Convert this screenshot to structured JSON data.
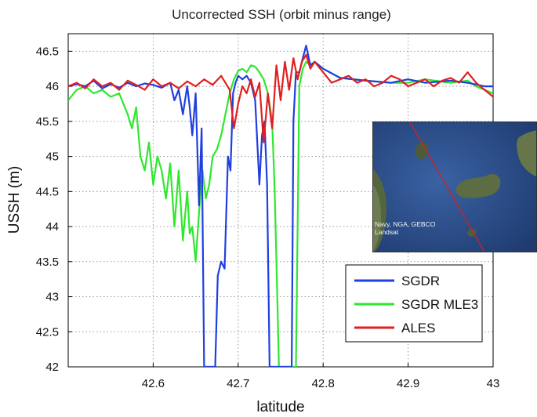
{
  "chart_data": {
    "type": "line",
    "title": "Uncorrected SSH (orbit minus range)",
    "xlabel": "latitude",
    "ylabel": "USSH (m)",
    "xlim": [
      42.5,
      43.0
    ],
    "ylim": [
      42,
      46.75
    ],
    "xticks": [
      42.6,
      42.7,
      42.8,
      42.9,
      43.0
    ],
    "xtick_labels": [
      "42.6",
      "42.7",
      "42.8",
      "42.9",
      "43"
    ],
    "yticks": [
      42,
      42.5,
      43,
      43.5,
      44,
      44.5,
      45,
      45.5,
      46,
      46.5
    ],
    "ytick_labels": [
      "42",
      "42.5",
      "43",
      "43.5",
      "44",
      "44.5",
      "45",
      "45.5",
      "46",
      "46.5"
    ],
    "grid": true,
    "legend_position": "lower-right",
    "series": [
      {
        "name": "SGDR",
        "color": "#1f3fe0",
        "x": [
          42.5,
          42.51,
          42.52,
          42.53,
          42.54,
          42.55,
          42.56,
          42.57,
          42.58,
          42.59,
          42.6,
          42.61,
          42.62,
          42.625,
          42.63,
          42.635,
          42.64,
          42.643,
          42.646,
          42.65,
          42.654,
          42.657,
          42.66,
          42.663,
          42.666,
          42.67,
          42.673,
          42.676,
          42.68,
          42.684,
          42.688,
          42.691,
          42.694,
          42.697,
          42.7,
          42.705,
          42.71,
          42.715,
          42.72,
          42.725,
          42.728,
          42.731,
          42.734,
          42.737,
          42.74,
          42.745,
          42.75,
          42.755,
          42.76,
          42.763,
          42.765,
          42.768,
          42.772,
          42.776,
          42.78,
          42.785,
          42.79,
          42.8,
          42.82,
          42.85,
          42.88,
          42.9,
          42.92,
          42.95,
          42.97,
          42.99,
          43.0
        ],
        "values": [
          46.0,
          46.03,
          46.0,
          46.08,
          45.97,
          46.03,
          45.98,
          46.05,
          46.0,
          46.04,
          46.02,
          45.98,
          46.05,
          45.8,
          45.95,
          45.6,
          46.0,
          45.7,
          45.3,
          45.9,
          44.3,
          45.4,
          42.0,
          42.0,
          42.0,
          42.0,
          42.0,
          43.3,
          43.5,
          43.4,
          45.0,
          44.8,
          45.9,
          46.05,
          46.15,
          46.1,
          46.15,
          46.05,
          45.8,
          44.6,
          45.3,
          45.5,
          44.6,
          42.0,
          42.0,
          42.0,
          42.0,
          42.0,
          42.0,
          42.0,
          45.5,
          46.2,
          46.2,
          46.4,
          46.58,
          46.3,
          46.35,
          46.25,
          46.12,
          46.08,
          46.05,
          46.1,
          46.05,
          46.08,
          46.05,
          46.0,
          46.0
        ]
      },
      {
        "name": "SGDR MLE3",
        "color": "#2ee82e",
        "x": [
          42.5,
          42.51,
          42.52,
          42.53,
          42.54,
          42.55,
          42.56,
          42.57,
          42.575,
          42.58,
          42.585,
          42.59,
          42.595,
          42.6,
          42.605,
          42.61,
          42.615,
          42.62,
          42.625,
          42.63,
          42.635,
          42.64,
          42.643,
          42.646,
          42.65,
          42.654,
          42.658,
          42.662,
          42.666,
          42.67,
          42.675,
          42.68,
          42.685,
          42.69,
          42.695,
          42.7,
          42.705,
          42.71,
          42.715,
          42.72,
          42.725,
          42.73,
          42.735,
          42.74,
          42.743,
          42.746,
          42.748,
          42.75,
          42.755,
          42.76,
          42.765,
          42.768,
          42.772,
          42.776,
          42.78,
          42.785,
          42.79,
          42.8,
          42.82,
          42.85,
          42.88,
          42.9,
          42.92,
          42.95,
          42.97,
          42.98,
          42.99,
          43.0
        ],
        "values": [
          45.8,
          45.95,
          46.0,
          45.9,
          45.95,
          45.85,
          45.9,
          45.6,
          45.4,
          45.7,
          45.0,
          44.8,
          45.2,
          44.6,
          45.0,
          44.8,
          44.4,
          44.9,
          44.0,
          44.8,
          43.8,
          44.5,
          43.9,
          44.0,
          43.5,
          44.2,
          44.8,
          44.4,
          44.6,
          45.0,
          45.1,
          45.3,
          45.6,
          45.9,
          46.1,
          46.22,
          46.25,
          46.2,
          46.3,
          46.28,
          46.2,
          46.1,
          45.9,
          45.5,
          44.5,
          43.0,
          42.0,
          42.0,
          42.0,
          42.0,
          42.0,
          42.0,
          46.0,
          46.25,
          46.35,
          46.3,
          46.35,
          46.25,
          46.12,
          46.08,
          46.05,
          46.05,
          46.1,
          46.05,
          46.08,
          46.0,
          45.95,
          45.9
        ]
      },
      {
        "name": "ALES",
        "color": "#e02020",
        "x": [
          42.5,
          42.51,
          42.52,
          42.53,
          42.54,
          42.55,
          42.56,
          42.57,
          42.58,
          42.59,
          42.6,
          42.61,
          42.62,
          42.63,
          42.64,
          42.65,
          42.66,
          42.67,
          42.68,
          42.69,
          42.695,
          42.7,
          42.705,
          42.71,
          42.715,
          42.72,
          42.725,
          42.73,
          42.735,
          42.74,
          42.745,
          42.75,
          42.755,
          42.76,
          42.765,
          42.77,
          42.775,
          42.78,
          42.785,
          42.79,
          42.8,
          42.81,
          42.82,
          42.83,
          42.84,
          42.85,
          42.86,
          42.87,
          42.88,
          42.89,
          42.9,
          42.91,
          42.92,
          42.93,
          42.94,
          42.95,
          42.96,
          42.97,
          42.98,
          42.99,
          43.0
        ],
        "values": [
          46.0,
          46.05,
          45.97,
          46.1,
          46.0,
          46.05,
          45.95,
          46.08,
          46.02,
          45.95,
          46.1,
          46.0,
          46.05,
          45.97,
          46.07,
          46.0,
          46.1,
          46.02,
          46.15,
          45.95,
          45.4,
          45.75,
          46.0,
          45.9,
          46.1,
          45.85,
          46.05,
          45.2,
          45.9,
          45.4,
          46.3,
          45.8,
          46.35,
          45.95,
          46.4,
          46.1,
          46.35,
          46.45,
          46.25,
          46.35,
          46.2,
          46.05,
          46.1,
          46.15,
          46.05,
          46.1,
          46.0,
          46.05,
          46.15,
          46.1,
          46.0,
          46.05,
          46.1,
          46.0,
          46.08,
          46.12,
          46.05,
          46.2,
          46.05,
          45.95,
          45.85
        ]
      }
    ]
  },
  "inset_map": {
    "credit_lines": [
      "Navy, NGA, GEBCO",
      "Landsat"
    ],
    "colors": {
      "sea": "#2c4f8f",
      "land": "#5b6a46",
      "track": "#d02020"
    }
  }
}
